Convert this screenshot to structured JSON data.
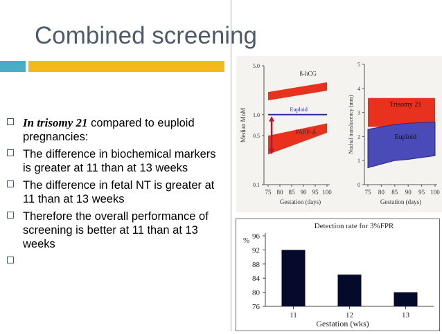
{
  "slide": {
    "title": "Combined screening",
    "colors": {
      "accent_blue": "#4bacc6",
      "accent_gold": "#f2b81c",
      "text": "#000000",
      "title": "#4d5a6b"
    }
  },
  "bullets": [
    {
      "lead": "In trisomy 21",
      "lines": [
        " compared to euploid",
        "pregnancies:"
      ]
    },
    {
      "lines": [
        "The difference in biochemical markers",
        "is greater at 11 than at 13 weeks"
      ]
    },
    {
      "lines": [
        "The difference in fetal NT is greater at",
        "11 than at 13 weeks"
      ]
    },
    {
      "lines": [
        "Therefore the overall performance of",
        "screening is better at 11 than at 13",
        "weeks"
      ]
    },
    {
      "lines": [
        ""
      ]
    }
  ],
  "chart_data": [
    {
      "type": "area",
      "xlabel": "Gestation (days)",
      "ylabel": "Median MoM",
      "x_ticks": [
        "75",
        "80",
        "85",
        "90",
        "95",
        "100"
      ],
      "y_ticks": [
        "0.1",
        "0.5",
        "1.0",
        "5.0"
      ],
      "series": [
        {
          "name": "ß-hCG",
          "x": [
            75,
            100
          ],
          "upper": [
            2.1,
            2.9
          ],
          "lower": [
            1.6,
            2.2
          ]
        },
        {
          "name": "Euploid",
          "x": [
            75,
            100
          ],
          "values": [
            1.0,
            1.0
          ]
        },
        {
          "name": "PAPP-A",
          "x": [
            75,
            100
          ],
          "upper": [
            0.5,
            0.75
          ],
          "lower": [
            0.27,
            0.55
          ]
        }
      ]
    },
    {
      "type": "area",
      "xlabel": "Gestation (days)",
      "ylabel": "Nuchal translucency (mm)",
      "x_ticks": [
        "75",
        "80",
        "85",
        "90",
        "95",
        "100"
      ],
      "y_ticks": [
        "0",
        "1",
        "2",
        "3",
        "4",
        "5"
      ],
      "series": [
        {
          "name": "Trisomy 21",
          "x": [
            75,
            100
          ],
          "upper": [
            3.6,
            3.6
          ],
          "lower": [
            2.4,
            2.4
          ]
        },
        {
          "name": "Euploid",
          "x": [
            75,
            85,
            90,
            100
          ],
          "upper": [
            2.3,
            2.5,
            2.55,
            2.6
          ],
          "lower": [
            0.7,
            1.0,
            1.05,
            1.2
          ]
        }
      ]
    },
    {
      "type": "bar",
      "title": "Detection rate for 3%FPR",
      "xlabel": "Gestation (wks)",
      "ylabel": "%",
      "categories": [
        "11",
        "12",
        "13"
      ],
      "values": [
        92,
        85,
        80
      ],
      "ylim": [
        76,
        96
      ],
      "y_ticks": [
        "76",
        "80",
        "84",
        "88",
        "92",
        "96"
      ]
    }
  ]
}
